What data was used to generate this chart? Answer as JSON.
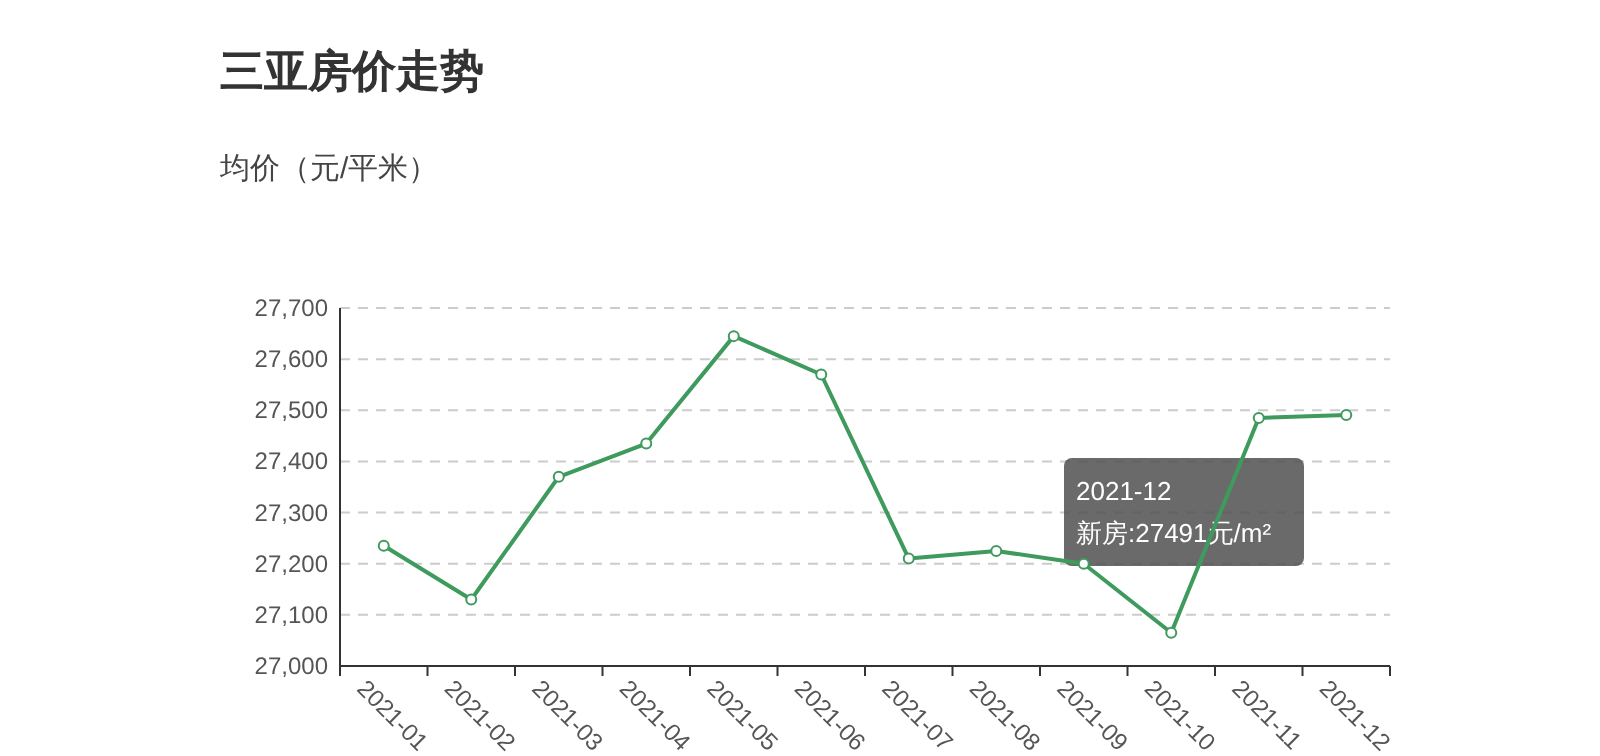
{
  "chart_data": {
    "type": "line",
    "title": "三亚房价走势",
    "ylabel": "均价（元/平米）",
    "categories": [
      "2021-01",
      "2021-02",
      "2021-03",
      "2021-04",
      "2021-05",
      "2021-06",
      "2021-07",
      "2021-08",
      "2021-09",
      "2021-10",
      "2021-11",
      "2021-12"
    ],
    "series": [
      {
        "color": "#3f9a5e",
        "values": [
          27235,
          27130,
          27370,
          27435,
          27645,
          27570,
          27210,
          27225,
          27200,
          27065,
          27485,
          27491
        ]
      }
    ],
    "ylim": [
      27000,
      27700
    ],
    "yticks": [
      {
        "value": 27000,
        "label": "27,000"
      },
      {
        "value": 27100,
        "label": "27,100"
      },
      {
        "value": 27200,
        "label": "27,200"
      },
      {
        "value": 27300,
        "label": "27,300"
      },
      {
        "value": 27400,
        "label": "27,400"
      },
      {
        "value": 27500,
        "label": "27,500"
      },
      {
        "value": 27600,
        "label": "27,600"
      },
      {
        "value": 27700,
        "label": "27,700"
      }
    ],
    "grid": "y",
    "marker": "circle",
    "line_style": "solid",
    "annotations": [
      "2021-12\n新房:27491元/m²"
    ]
  }
}
